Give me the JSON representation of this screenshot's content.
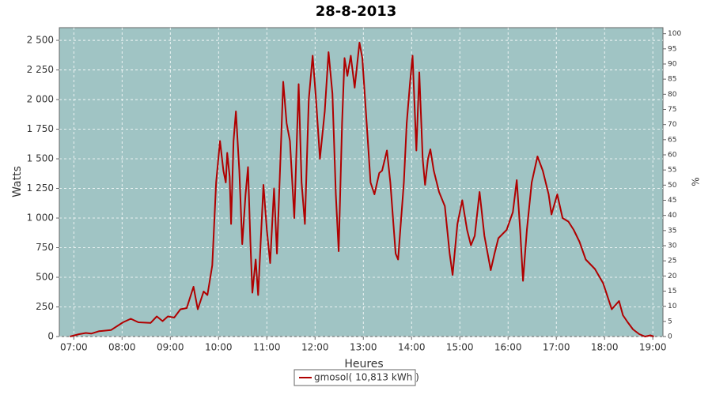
{
  "chart_data": {
    "type": "line",
    "title": "28-8-2013",
    "x_label": "Heures",
    "y_label": "Watts",
    "y2_label": "%",
    "x": [
      6.92,
      7.11,
      7.25,
      7.36,
      7.52,
      7.77,
      8.02,
      8.18,
      8.34,
      8.59,
      8.72,
      8.84,
      8.95,
      9.08,
      9.21,
      9.34,
      9.48,
      9.57,
      9.69,
      9.77,
      9.87,
      9.95,
      10.03,
      10.1,
      10.15,
      10.18,
      10.23,
      10.26,
      10.31,
      10.36,
      10.43,
      10.49,
      10.56,
      10.61,
      10.66,
      10.7,
      10.77,
      10.82,
      10.93,
      11.0,
      11.07,
      11.15,
      11.21,
      11.3,
      11.34,
      11.41,
      11.48,
      11.57,
      11.66,
      11.72,
      11.79,
      11.87,
      11.95,
      12.02,
      12.1,
      12.2,
      12.28,
      12.36,
      12.43,
      12.49,
      12.56,
      12.61,
      12.67,
      12.74,
      12.82,
      12.92,
      12.98,
      13.07,
      13.15,
      13.23,
      13.33,
      13.39,
      13.49,
      13.56,
      13.67,
      13.72,
      13.84,
      13.9,
      13.97,
      14.02,
      14.1,
      14.16,
      14.23,
      14.28,
      14.34,
      14.39,
      14.46,
      14.57,
      14.69,
      14.79,
      14.85,
      14.95,
      15.05,
      15.15,
      15.23,
      15.31,
      15.41,
      15.51,
      15.64,
      15.72,
      15.8,
      15.97,
      16.1,
      16.18,
      16.25,
      16.31,
      16.39,
      16.49,
      16.61,
      16.72,
      16.84,
      16.9,
      17.02,
      17.13,
      17.25,
      17.36,
      17.48,
      17.61,
      17.8,
      17.97,
      18.15,
      18.3,
      18.38,
      18.48,
      18.59,
      18.72,
      18.84,
      18.95,
      19.02
    ],
    "series": [
      {
        "name": "gmosol( 10,813 kWh )",
        "color": "#b00000",
        "values": [
          0,
          20,
          30,
          25,
          45,
          55,
          120,
          150,
          120,
          115,
          170,
          130,
          170,
          160,
          230,
          240,
          420,
          230,
          380,
          350,
          600,
          1300,
          1650,
          1400,
          1300,
          1550,
          1350,
          950,
          1650,
          1900,
          1400,
          780,
          1200,
          1430,
          800,
          370,
          650,
          350,
          1280,
          900,
          620,
          1250,
          700,
          1700,
          2150,
          1800,
          1650,
          1000,
          2130,
          1300,
          950,
          2000,
          2370,
          2000,
          1500,
          1900,
          2400,
          2050,
          1200,
          720,
          1800,
          2350,
          2200,
          2370,
          2100,
          2480,
          2350,
          1800,
          1300,
          1200,
          1380,
          1400,
          1570,
          1300,
          700,
          650,
          1300,
          1800,
          2150,
          2370,
          1570,
          2230,
          1500,
          1280,
          1500,
          1580,
          1400,
          1220,
          1100,
          700,
          520,
          950,
          1150,
          900,
          770,
          850,
          1220,
          850,
          560,
          700,
          830,
          900,
          1050,
          1320,
          900,
          470,
          900,
          1300,
          1520,
          1400,
          1200,
          1030,
          1200,
          1000,
          970,
          900,
          800,
          650,
          570,
          450,
          230,
          300,
          180,
          120,
          60,
          20,
          0,
          10,
          0
        ]
      }
    ],
    "xlim": [
      6.7,
      19.21
    ],
    "xticks": [
      {
        "value": 7,
        "label": "07:00"
      },
      {
        "value": 8,
        "label": "08:00"
      },
      {
        "value": 9,
        "label": "09:00"
      },
      {
        "value": 10,
        "label": "10:00"
      },
      {
        "value": 11,
        "label": "11:00"
      },
      {
        "value": 12,
        "label": "12:00"
      },
      {
        "value": 13,
        "label": "13:00"
      },
      {
        "value": 14,
        "label": "14:00"
      },
      {
        "value": 15,
        "label": "15:00"
      },
      {
        "value": 16,
        "label": "16:00"
      },
      {
        "value": 17,
        "label": "17:00"
      },
      {
        "value": 18,
        "label": "18:00"
      },
      {
        "value": 19,
        "label": "19:00"
      }
    ],
    "ylim": [
      0,
      2607
    ],
    "yticks": [
      0,
      250,
      500,
      750,
      {
        "value": 1000,
        "label": "1 000"
      },
      {
        "value": 1250,
        "label": "1 250"
      },
      {
        "value": 1500,
        "label": "1 500"
      },
      {
        "value": 1750,
        "label": "1 750"
      },
      {
        "value": 2000,
        "label": "2 000"
      },
      {
        "value": 2250,
        "label": "2 250"
      },
      {
        "value": 2500,
        "label": "2 500"
      }
    ],
    "y2lim": [
      0,
      102
    ],
    "y2ticks": [
      0,
      5,
      10,
      15,
      20,
      25,
      30,
      35,
      40,
      45,
      50,
      55,
      60,
      65,
      70,
      75,
      80,
      85,
      90,
      95,
      100
    ],
    "grid": true,
    "background": "#a0c4c4",
    "legend": "bottom"
  }
}
